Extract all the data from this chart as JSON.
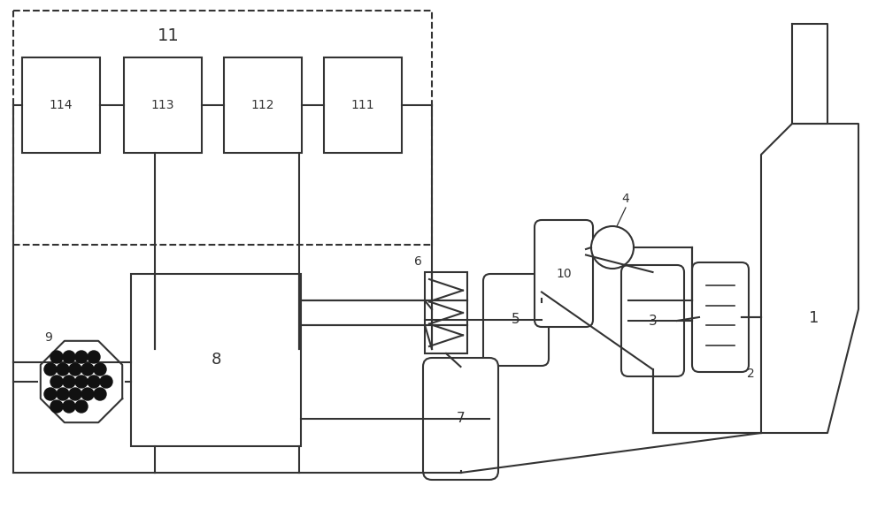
{
  "bg_color": "#ffffff",
  "lc": "#333333",
  "lw": 1.5,
  "lw_thin": 1.2,
  "figsize": [
    10.0,
    5.84
  ],
  "dpi": 100
}
